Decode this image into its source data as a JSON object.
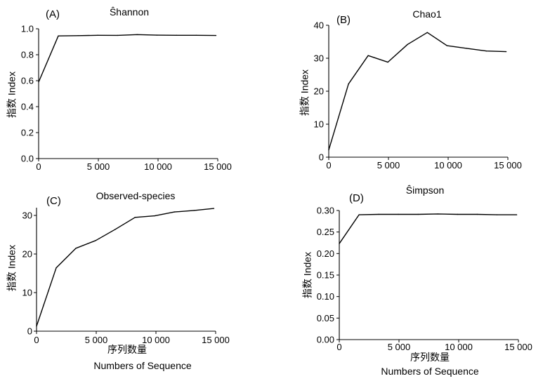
{
  "chart_data": [
    {
      "panel_label": "(A)",
      "type": "line",
      "title": "Ŝhannon",
      "ylabel": "指数 Index",
      "x": [
        0,
        1650,
        3300,
        4950,
        6600,
        8250,
        9900,
        11550,
        13200,
        14850
      ],
      "series": [
        {
          "values": [
            0.59,
            0.945,
            0.947,
            0.95,
            0.949,
            0.955,
            0.951,
            0.95,
            0.95,
            0.948
          ]
        }
      ],
      "xlim": [
        0,
        15000
      ],
      "ylim": [
        0,
        1.0
      ],
      "xticks": [
        0,
        5000,
        10000,
        15000
      ],
      "xtick_labels": [
        "0",
        "5 000",
        "10 000",
        "15 000"
      ],
      "yticks": [
        0,
        0.2,
        0.4,
        0.6,
        0.8,
        1.0
      ],
      "ytick_labels": [
        "0.0",
        "0.2",
        "0.4",
        "0.6",
        "0.8",
        "1.0"
      ],
      "grid": false
    },
    {
      "panel_label": "(B)",
      "type": "line",
      "title": "Chao1",
      "ylabel": "指数 Index",
      "x": [
        0,
        1650,
        3300,
        4950,
        6600,
        8250,
        9900,
        11550,
        13200,
        14850
      ],
      "series": [
        {
          "values": [
            2.2,
            22.2,
            30.8,
            28.8,
            34.2,
            37.8,
            33.8,
            33.0,
            32.2,
            32.0
          ]
        }
      ],
      "xlim": [
        0,
        15000
      ],
      "ylim": [
        0,
        40
      ],
      "xticks": [
        0,
        5000,
        10000,
        15000
      ],
      "xtick_labels": [
        "0",
        "5 000",
        "10 000",
        "15 000"
      ],
      "yticks": [
        0,
        10,
        20,
        30,
        40
      ],
      "ytick_labels": [
        "0",
        "10",
        "20",
        "30",
        "40"
      ],
      "grid": false
    },
    {
      "panel_label": "(C)",
      "type": "line",
      "title": "Observed-species",
      "ylabel": "指数 Index",
      "xlabel": "序列数量",
      "xlabel_en": "Numbers of Sequence",
      "x": [
        0,
        1650,
        3300,
        4950,
        6600,
        8250,
        9900,
        11550,
        13200,
        14850
      ],
      "series": [
        {
          "values": [
            1.3,
            16.4,
            21.5,
            23.5,
            26.4,
            29.5,
            29.9,
            30.9,
            31.3,
            31.8
          ]
        }
      ],
      "xlim": [
        0,
        15000
      ],
      "ylim": [
        0,
        32
      ],
      "xticks": [
        0,
        5000,
        10000,
        15000
      ],
      "xtick_labels": [
        "0",
        "5 000",
        "10 000",
        "15 000"
      ],
      "yticks": [
        0,
        10,
        20,
        30
      ],
      "ytick_labels": [
        "0",
        "10",
        "20",
        "30"
      ],
      "grid": false
    },
    {
      "panel_label": "(D)",
      "type": "line",
      "title": "Ŝimpson",
      "ylabel": "指数 Index",
      "xlabel": "序列数量",
      "xlabel_en": "Numbers of Sequence",
      "x": [
        0,
        1650,
        3300,
        4950,
        6600,
        8250,
        9900,
        11550,
        13200,
        14850
      ],
      "series": [
        {
          "values": [
            0.223,
            0.29,
            0.291,
            0.291,
            0.291,
            0.292,
            0.291,
            0.291,
            0.29,
            0.29
          ]
        }
      ],
      "xlim": [
        0,
        15000
      ],
      "ylim": [
        0,
        0.3
      ],
      "xticks": [
        0,
        5000,
        10000,
        15000
      ],
      "xtick_labels": [
        "0",
        "5 000",
        "10 000",
        "15 000"
      ],
      "yticks": [
        0,
        0.05,
        0.1,
        0.15,
        0.2,
        0.25,
        0.3
      ],
      "ytick_labels": [
        "0.00",
        "0.05",
        "0.10",
        "0.15",
        "0.20",
        "0.25",
        "0.30"
      ],
      "grid": false
    }
  ]
}
